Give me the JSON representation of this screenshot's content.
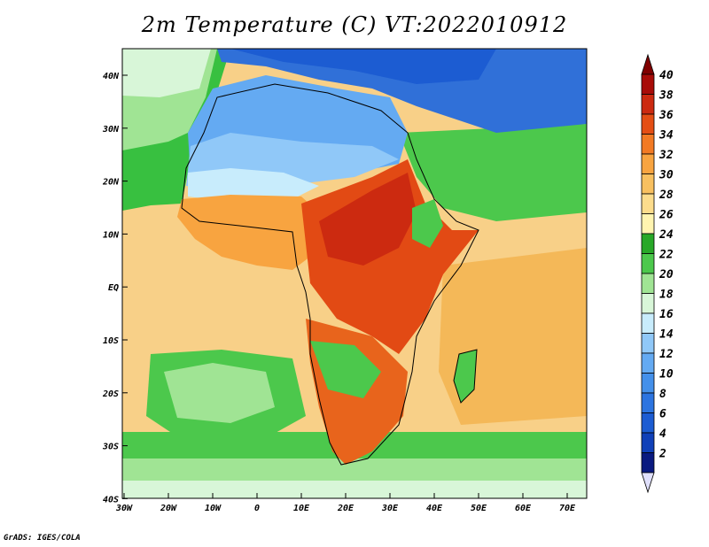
{
  "title": "2m Temperature (C) VT:2022010912",
  "credit": "GrADS: IGES/COLA",
  "map": {
    "lon_range": [
      -30,
      75
    ],
    "lat_range": [
      -40,
      45
    ],
    "lon_ticks": [
      "30W",
      "20W",
      "10W",
      "0",
      "10E",
      "20E",
      "30E",
      "40E",
      "50E",
      "60E",
      "70E"
    ],
    "lat_ticks": [
      "40N",
      "30N",
      "20N",
      "10N",
      "EQ",
      "10S",
      "20S",
      "30S",
      "40S"
    ],
    "regions": [
      {
        "name": "sahara",
        "color": "#5aa0ea"
      },
      {
        "name": "mediterranean-europe",
        "color": "#3070d8"
      },
      {
        "name": "arabia",
        "color": "#3a7ee0"
      },
      {
        "name": "sahel-hot",
        "color": "#d82e10"
      },
      {
        "name": "east-africa",
        "color": "#e24a14"
      },
      {
        "name": "southern-africa",
        "color": "#e8641c"
      },
      {
        "name": "atlantic-north",
        "color": "#38c040"
      },
      {
        "name": "tropical-ocean",
        "color": "#f8d088"
      },
      {
        "name": "indian-ocean",
        "color": "#f4b858"
      },
      {
        "name": "south-atlantic",
        "color": "#4cc84c"
      },
      {
        "name": "southern-ocean",
        "color": "#a8e49c"
      }
    ]
  },
  "colorbar": {
    "levels": [
      "2",
      "4",
      "6",
      "8",
      "10",
      "12",
      "14",
      "16",
      "18",
      "20",
      "22",
      "24",
      "26",
      "28",
      "30",
      "32",
      "34",
      "36",
      "38",
      "40"
    ],
    "colors": [
      "#0a1a80",
      "#1040b8",
      "#1c5cd2",
      "#2c74e0",
      "#4490ea",
      "#64aaf2",
      "#90c8f8",
      "#c8ecfc",
      "#d8f6d8",
      "#a0e494",
      "#4cc84c",
      "#28a828",
      "#fff4b0",
      "#fcdc8c",
      "#f8c060",
      "#f8a440",
      "#f27a24",
      "#e44e14",
      "#cc2a10",
      "#a80c08"
    ],
    "below_color": "#e0e0fc",
    "above_color": "#800000"
  }
}
